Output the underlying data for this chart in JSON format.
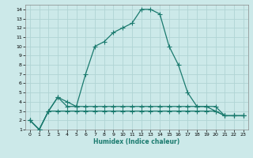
{
  "xlabel": "Humidex (Indice chaleur)",
  "xlim": [
    -0.5,
    23.5
  ],
  "ylim": [
    1,
    14.5
  ],
  "xticks": [
    0,
    1,
    2,
    3,
    4,
    5,
    6,
    7,
    8,
    9,
    10,
    11,
    12,
    13,
    14,
    15,
    16,
    17,
    18,
    19,
    20,
    21,
    22,
    23
  ],
  "yticks": [
    1,
    2,
    3,
    4,
    5,
    6,
    7,
    8,
    9,
    10,
    11,
    12,
    13,
    14
  ],
  "bg_color": "#cce9e9",
  "grid_color": "#b0d4d4",
  "line_color": "#1a7a6e",
  "series": [
    {
      "x": [
        0,
        1,
        2,
        3,
        4,
        5,
        6,
        7,
        8,
        9,
        10,
        11,
        12,
        13,
        14,
        15,
        16,
        17,
        18,
        19,
        20,
        21,
        22,
        23
      ],
      "y": [
        2,
        1,
        3,
        4.5,
        4,
        3.5,
        7,
        10,
        10.5,
        11.5,
        12,
        12.5,
        14,
        14,
        13.5,
        10,
        8,
        5,
        3.5,
        3.5,
        3,
        2.5,
        2.5,
        2.5
      ],
      "marker": "+",
      "markersize": 4,
      "linewidth": 0.9,
      "linestyle": "solid"
    },
    {
      "x": [
        0,
        1,
        2,
        3,
        4,
        5,
        6,
        7,
        8,
        9,
        10,
        11,
        12,
        13,
        14,
        15,
        16,
        17,
        18,
        19,
        20,
        21,
        22,
        23
      ],
      "y": [
        2,
        1,
        3,
        4.5,
        3.5,
        3.5,
        3.5,
        3.5,
        3.5,
        3.5,
        3.5,
        3.5,
        3.5,
        3.5,
        3.5,
        3.5,
        3.5,
        3.5,
        3.5,
        3.5,
        3.5,
        2.5,
        2.5,
        2.5
      ],
      "marker": "+",
      "markersize": 4,
      "linewidth": 0.9,
      "linestyle": "solid"
    },
    {
      "x": [
        0,
        1,
        2,
        3,
        4,
        5,
        6,
        7,
        8,
        9,
        10,
        11,
        12,
        13,
        14,
        15,
        16,
        17,
        18,
        19,
        20,
        21,
        22,
        23
      ],
      "y": [
        2,
        1,
        3,
        3,
        3,
        3,
        3,
        3,
        3,
        3,
        3,
        3,
        3,
        3,
        3,
        3,
        3,
        3,
        3,
        3,
        3,
        2.5,
        2.5,
        2.5
      ],
      "marker": "+",
      "markersize": 4,
      "linewidth": 0.9,
      "linestyle": "solid"
    }
  ]
}
